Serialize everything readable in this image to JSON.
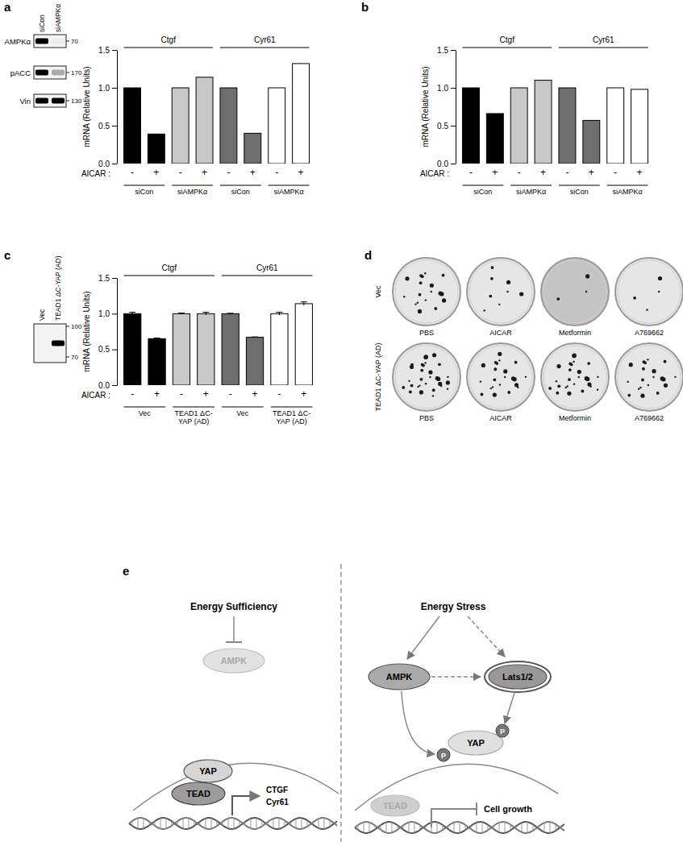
{
  "panels": [
    "a",
    "b",
    "c",
    "d",
    "e"
  ],
  "chart_data": [
    {
      "type": "bar",
      "categories": [
        "-",
        "+",
        "-",
        "+",
        "-",
        "+",
        "-",
        "+"
      ],
      "values": [
        1,
        0.39,
        1,
        1.14,
        1,
        0.4,
        1,
        1.32
      ],
      "colors": [
        "#000000",
        "#000000",
        "#c8c8c8",
        "#c8c8c8",
        "#6e6e6e",
        "#6e6e6e",
        "#ffffff",
        "#ffffff"
      ],
      "ylim": [
        0,
        1.5
      ],
      "yticks": [
        {
          "value": 0,
          "label": "0.0"
        },
        0.5,
        {
          "value": 1,
          "label": "1.0"
        },
        1.5
      ],
      "y_label": "mRNA (Relative Units)",
      "x_label": "AICAR :",
      "genes": [
        "Ctgf",
        "Cyr61"
      ],
      "groups": [
        "siCon",
        "siAMPKα",
        "siCon",
        "siAMPKα"
      ]
    },
    {
      "type": "bar",
      "categories": [
        "-",
        "+",
        "-",
        "+",
        "-",
        "+",
        "-",
        "+"
      ],
      "values": [
        1,
        0.66,
        1,
        1.1,
        1,
        0.57,
        1,
        0.98
      ],
      "colors": [
        "#000000",
        "#000000",
        "#c8c8c8",
        "#c8c8c8",
        "#6e6e6e",
        "#6e6e6e",
        "#ffffff",
        "#ffffff"
      ],
      "ylim": [
        0,
        1.5
      ],
      "yticks": [
        {
          "value": 0,
          "label": "0.0"
        },
        0.5,
        {
          "value": 1,
          "label": "1.0"
        },
        1.5
      ],
      "y_label": "mRNA (Relative Units)",
      "x_label": "AICAR :",
      "genes": [
        "Ctgf",
        "Cyr61"
      ],
      "groups": [
        "siCon",
        "siAMPKα",
        "siCon",
        "siAMPKα"
      ]
    },
    {
      "type": "bar",
      "categories": [
        "-",
        "+",
        "-",
        "+",
        "-",
        "+",
        "-",
        "+"
      ],
      "values": [
        1,
        0.65,
        1,
        1,
        1,
        0.67,
        1,
        1.14
      ],
      "errors": [
        0.02,
        0.01,
        0.01,
        0.02,
        0.005,
        0.005,
        0.02,
        0.025
      ],
      "colors": [
        "#000000",
        "#000000",
        "#c8c8c8",
        "#c8c8c8",
        "#6e6e6e",
        "#6e6e6e",
        "#ffffff",
        "#ffffff"
      ],
      "ylim": [
        0,
        1.5
      ],
      "yticks": [
        {
          "value": 0,
          "label": "0.0"
        },
        0.5,
        {
          "value": 1,
          "label": "1.0"
        },
        1.5
      ],
      "y_label": "mRNA (Relative Units)",
      "x_label": "AICAR :",
      "genes": [
        "Ctgf",
        "Cyr61"
      ],
      "groups": [
        "Vec",
        "TEAD1 ΔC-YAP (AD)",
        "Vec",
        "TEAD1 ΔC-YAP (AD)"
      ]
    }
  ],
  "blots": [
    {
      "lanes": [
        "siCon",
        "siAMPKα"
      ],
      "rows": [
        {
          "label": "AMPKα",
          "intensity": [
            1,
            0.03
          ],
          "markers": [
            70
          ]
        },
        {
          "label": "pACC",
          "intensity": [
            1,
            0.3
          ],
          "markers": [
            170
          ]
        },
        {
          "label": "Vin",
          "intensity": [
            1,
            1
          ],
          "markers": [
            130
          ]
        }
      ]
    },
    {
      "lanes": [
        "Vec",
        "TEAD1 ΔC-YAP (AD)"
      ],
      "rows": [
        {
          "intensity": [
            0,
            1
          ],
          "markers": [
            100,
            70
          ]
        }
      ]
    }
  ],
  "plates": {
    "rows": [
      "Vec",
      "TEAD1 ΔC-YAP (AD)"
    ],
    "columns": [
      "PBS",
      "AICAR",
      "Metformin",
      "A769662"
    ],
    "colonies": [
      [
        18,
        8,
        3,
        4
      ],
      [
        30,
        22,
        26,
        20
      ]
    ]
  },
  "diagram": {
    "left": {
      "title": "Energy Sufficiency",
      "kinase": "AMPK",
      "coactivator": "YAP",
      "factor": "TEAD",
      "targets": [
        "CTGF",
        "Cyr61"
      ]
    },
    "right": {
      "title": "Energy Stress",
      "kinase": "AMPK",
      "upstream": "Lats1/2",
      "coactivator": "YAP",
      "phospho": [
        "P",
        "P"
      ],
      "factor": "TEAD",
      "outcome": "Cell growth"
    }
  }
}
